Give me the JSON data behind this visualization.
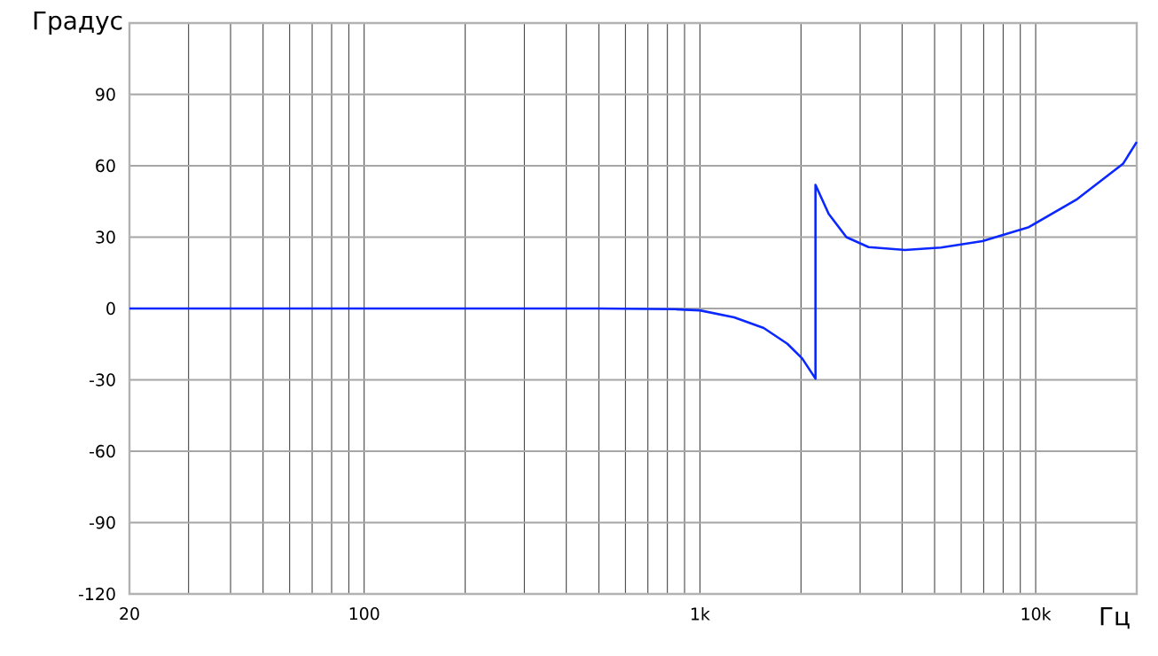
{
  "chart_data": {
    "type": "line",
    "xlabel": "Гц",
    "ylabel": "Градус",
    "log": "x",
    "grid": true,
    "marker": "none",
    "line_style": "solid",
    "xlim": [
      20,
      20000
    ],
    "ylim": [
      -120,
      120
    ],
    "xticks": [
      {
        "value": 20,
        "label": "20"
      },
      {
        "value": 30,
        "label": null
      },
      {
        "value": 40,
        "label": null
      },
      {
        "value": 50,
        "label": null
      },
      {
        "value": 60,
        "label": null
      },
      {
        "value": 70,
        "label": null
      },
      {
        "value": 80,
        "label": null
      },
      {
        "value": 90,
        "label": null
      },
      {
        "value": 100,
        "label": "100"
      },
      {
        "value": 200,
        "label": null
      },
      {
        "value": 300,
        "label": null
      },
      {
        "value": 400,
        "label": null
      },
      {
        "value": 500,
        "label": null
      },
      {
        "value": 600,
        "label": null
      },
      {
        "value": 700,
        "label": null
      },
      {
        "value": 800,
        "label": null
      },
      {
        "value": 900,
        "label": null
      },
      {
        "value": 1000,
        "label": "1k"
      },
      {
        "value": 2000,
        "label": null
      },
      {
        "value": 3000,
        "label": null
      },
      {
        "value": 4000,
        "label": null
      },
      {
        "value": 5000,
        "label": null
      },
      {
        "value": 6000,
        "label": null
      },
      {
        "value": 7000,
        "label": null
      },
      {
        "value": 8000,
        "label": null
      },
      {
        "value": 9000,
        "label": null
      },
      {
        "value": 10000,
        "label": "10k"
      }
    ],
    "yticks": [
      -120,
      -90,
      -60,
      -30,
      0,
      30,
      60,
      90
    ],
    "series": [
      {
        "color": "#0a28ff",
        "x": [
          20,
          100,
          500,
          843,
          1000,
          1265,
          1549,
          1821,
          2017,
          2209,
          2209,
          2418,
          2730,
          3179,
          4074,
          5223,
          6941,
          9543,
          13300,
          18200,
          20000
        ],
        "values": [
          0,
          0,
          0,
          -0.3,
          -0.8,
          -3.7,
          -8.2,
          -14.8,
          -21,
          -29.5,
          52,
          39.8,
          30,
          25.8,
          24.6,
          25.6,
          28.3,
          34.2,
          46,
          60.8,
          70
        ]
      }
    ]
  }
}
